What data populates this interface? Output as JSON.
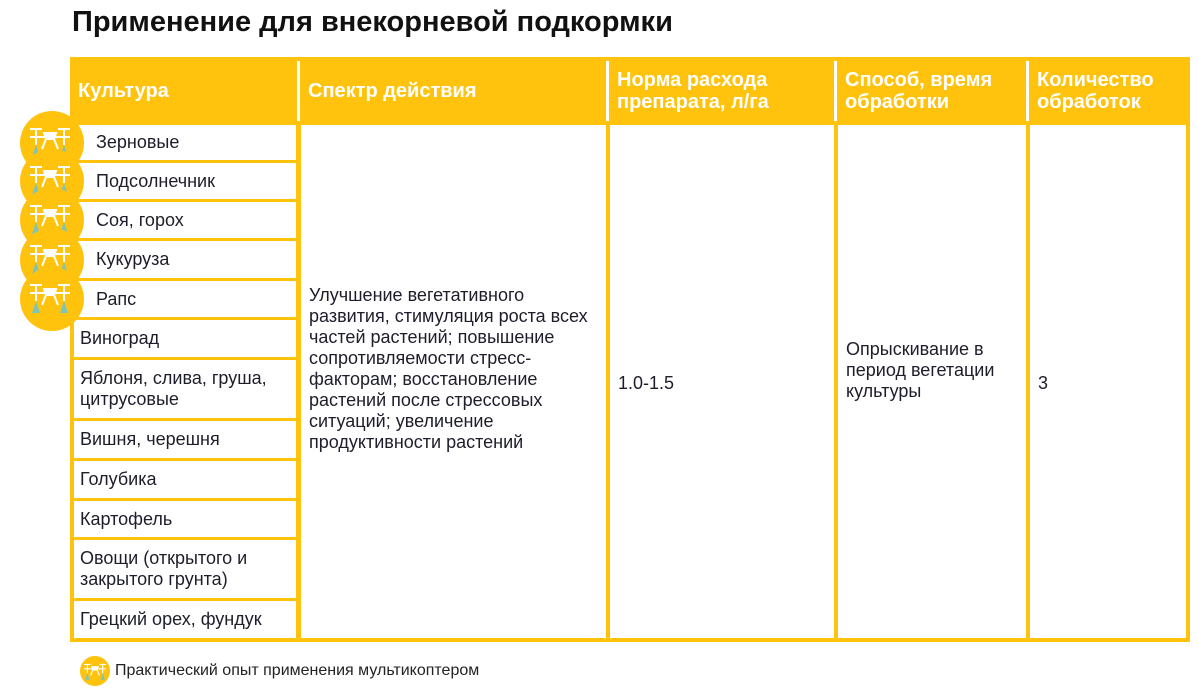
{
  "title": "Применение для внекорневой подкормки",
  "headers": [
    "Культура",
    "Спектр действия",
    "Норма расхода препарата, л/га",
    "Способ, время обработки",
    "Количество обработок"
  ],
  "crops": [
    {
      "name": "Зерновые",
      "drone": true
    },
    {
      "name": "Подсолнечник",
      "drone": true
    },
    {
      "name": "Соя, горох",
      "drone": true
    },
    {
      "name": "Кукуруза",
      "drone": true
    },
    {
      "name": "Рапс",
      "drone": true
    },
    {
      "name": "Виноград",
      "drone": false
    },
    {
      "name": "Яблоня, слива, груша, цитрусовые",
      "drone": false
    },
    {
      "name": "Вишня, черешня",
      "drone": false
    },
    {
      "name": "Голубика",
      "drone": false
    },
    {
      "name": "Картофель",
      "drone": false
    },
    {
      "name": "Овощи (открытого и закрытого грунта)",
      "drone": false
    },
    {
      "name": "Грецкий орех, фундук",
      "drone": false
    }
  ],
  "spectrum": "Улучшение вегетативного развития, стимуляция роста всех частей растений; повышение сопротивляемости стресс-факторам; восстановление растений после стрессовых ситуаций; увеличение продуктивности растений",
  "rate": "1.0-1.5",
  "method": "Опрыскивание в период вегетации культуры",
  "count": "3",
  "footnote": {
    "icon": "drone-icon",
    "text": "Практический опыт применения мультикоптером"
  },
  "colors": {
    "accent": "#FFC30D",
    "spray": "#7fc4b8"
  }
}
